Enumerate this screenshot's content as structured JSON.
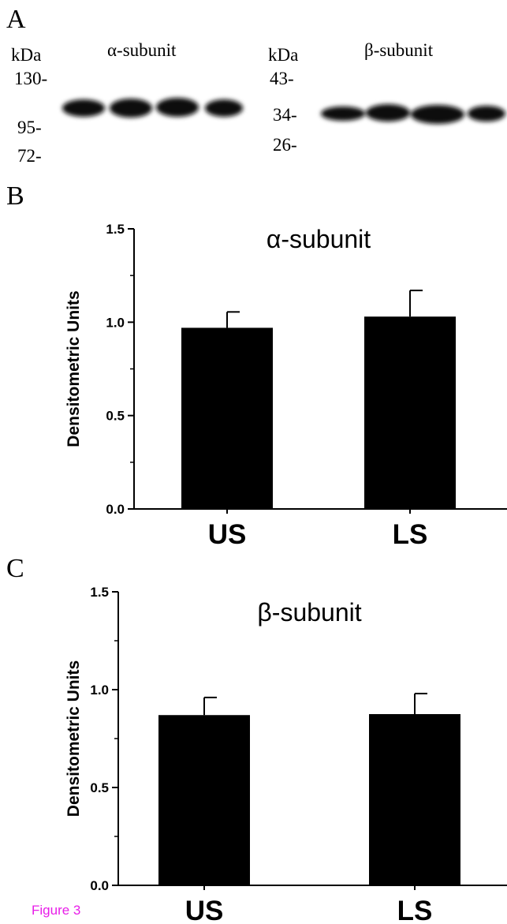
{
  "panels": {
    "a": "A",
    "b": "B",
    "c": "C"
  },
  "blot": {
    "alpha": {
      "unit": "kDa",
      "title": "α-subunit",
      "markers": [
        "130-",
        "95-",
        "72-"
      ]
    },
    "beta": {
      "unit": "kDa",
      "title": "β-subunit",
      "markers": [
        "43-",
        "34-",
        "26-"
      ]
    }
  },
  "figure_label": "Figure 3",
  "chart_data": [
    {
      "type": "bar",
      "title": "α-subunit",
      "xlabel": "",
      "ylabel": "Densitometric Units",
      "categories": [
        "US",
        "LS"
      ],
      "values": [
        0.97,
        1.03
      ],
      "errors": [
        0.085,
        0.14
      ],
      "ylim": [
        0,
        1.5
      ],
      "yticks": [
        "0.0",
        "0.5",
        "1.0",
        "1.5"
      ],
      "bar_color": "#000000",
      "grid": false
    },
    {
      "type": "bar",
      "title": "β-subunit",
      "xlabel": "",
      "ylabel": "Densitometric Units",
      "categories": [
        "US",
        "LS"
      ],
      "values": [
        0.87,
        0.875
      ],
      "errors": [
        0.09,
        0.105
      ],
      "ylim": [
        0,
        1.5
      ],
      "yticks": [
        "0.0",
        "0.5",
        "1.0",
        "1.5"
      ],
      "bar_color": "#000000",
      "grid": false
    }
  ]
}
